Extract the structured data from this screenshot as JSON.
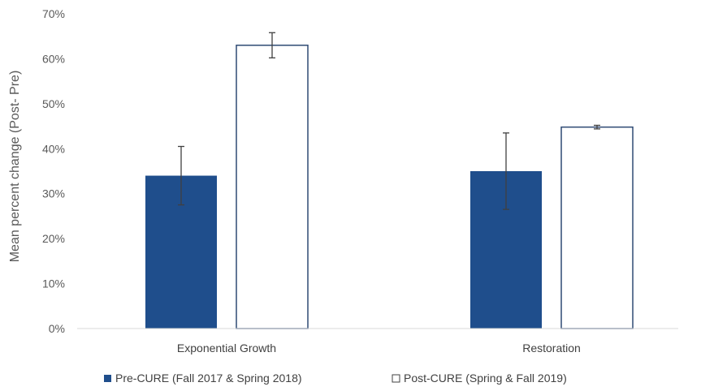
{
  "chart_data": {
    "type": "bar",
    "ylabel": "Mean percent change (Post- Pre)",
    "xlabel": "",
    "ylim": [
      0,
      70
    ],
    "y_ticks": [
      "0%",
      "10%",
      "20%",
      "30%",
      "40%",
      "50%",
      "60%",
      "70%"
    ],
    "categories": [
      "Exponential Growth",
      "Restoration"
    ],
    "series": [
      {
        "name": "Pre-CURE (Fall 2017 & Spring 2018)",
        "values": [
          34,
          35
        ],
        "errors": [
          6.5,
          8.5
        ],
        "color": "#1f4e8c"
      },
      {
        "name": "Post-CURE (Spring & Fall 2019)",
        "values": [
          63,
          44.8
        ],
        "errors": [
          2.8,
          0.4
        ],
        "color": "#ffffff"
      }
    ],
    "legend_position": "bottom",
    "grid": false
  }
}
